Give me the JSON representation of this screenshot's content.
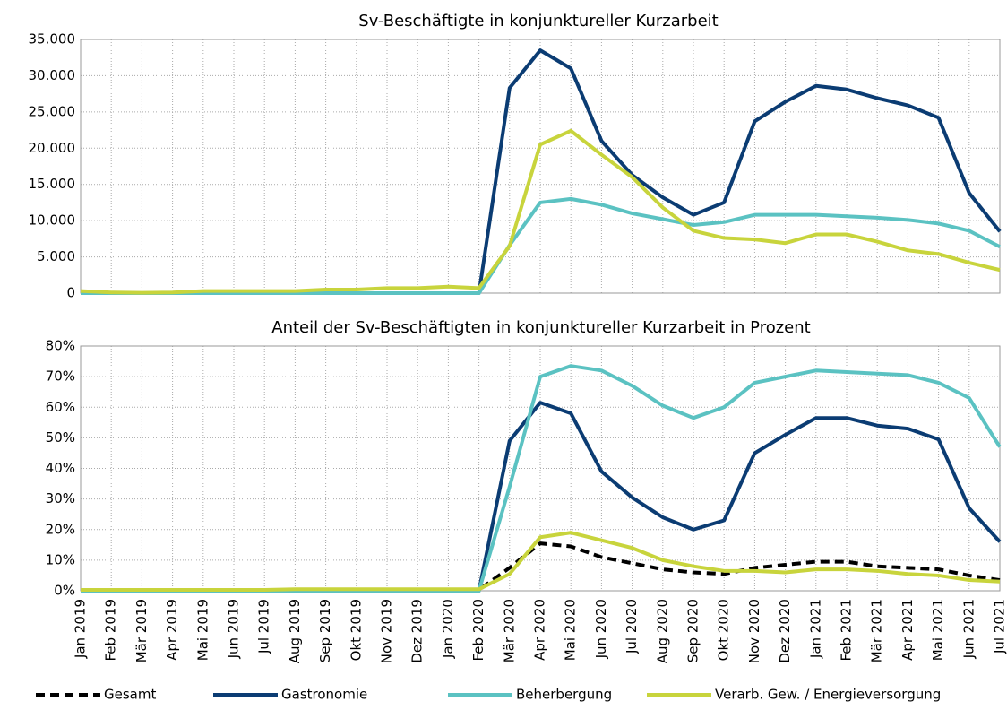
{
  "chart_data": [
    {
      "type": "line",
      "title": "Sv-Beschäftigte in konjunktureller Kurzarbeit",
      "categories": [
        "Jan 2019",
        "Feb 2019",
        "Mär 2019",
        "Apr 2019",
        "Mai 2019",
        "Jun 2019",
        "Jul 2019",
        "Aug 2019",
        "Sep 2019",
        "Okt 2019",
        "Nov 2019",
        "Dez 2019",
        "Jan 2020",
        "Feb 2020",
        "Mär 2020",
        "Apr 2020",
        "Mai 2020",
        "Jun 2020",
        "Jul 2020",
        "Aug 2020",
        "Sep 2020",
        "Okt 2020",
        "Nov 2020",
        "Dez 2020",
        "Jan 2021",
        "Feb 2021",
        "Mär 2021",
        "Apr 2021",
        "Mai 2021",
        "Jun 2021",
        "Jul 2021"
      ],
      "series": [
        {
          "name": "Gastronomie",
          "color": "#0b3c73",
          "values": [
            0,
            0,
            0,
            0,
            0,
            0,
            0,
            0,
            0,
            0,
            0,
            0,
            0,
            0,
            28300,
            33500,
            31000,
            21000,
            16300,
            13200,
            10800,
            12500,
            23700,
            26400,
            28600,
            28100,
            26900,
            25900,
            24200,
            13800,
            8500
          ]
        },
        {
          "name": "Beherbergung",
          "color": "#5bc2c2",
          "values": [
            0,
            0,
            0,
            0,
            0,
            0,
            0,
            0,
            0,
            0,
            0,
            0,
            0,
            0,
            6600,
            12500,
            13000,
            12200,
            11000,
            10200,
            9400,
            9800,
            10800,
            10800,
            10800,
            10600,
            10400,
            10100,
            9600,
            8600,
            6400
          ]
        },
        {
          "name": "Verarb. Gew. / Energieversorgung",
          "color": "#c8d43c",
          "values": [
            300,
            100,
            50,
            100,
            300,
            300,
            300,
            300,
            500,
            500,
            700,
            700,
            900,
            700,
            6500,
            20500,
            22400,
            19100,
            16000,
            11800,
            8600,
            7600,
            7400,
            6900,
            8100,
            8100,
            7100,
            5900,
            5400,
            4200,
            3200
          ]
        }
      ],
      "ylim": [
        0,
        35000
      ],
      "yticks": [
        0,
        {
          "value": 5000,
          "label": "5.000"
        },
        {
          "value": 10000,
          "label": "10.000"
        },
        {
          "value": 15000,
          "label": "15.000"
        },
        {
          "value": 20000,
          "label": "20.000"
        },
        {
          "value": 25000,
          "label": "25.000"
        },
        {
          "value": 30000,
          "label": "30.000"
        },
        {
          "value": 35000,
          "label": "35.000"
        }
      ],
      "grid": true
    },
    {
      "type": "line",
      "title": "Anteil der Sv-Beschäftigten in konjunktureller Kurzarbeit in Prozent",
      "categories": [
        "Jan 2019",
        "Feb 2019",
        "Mär 2019",
        "Apr 2019",
        "Mai 2019",
        "Jun 2019",
        "Jul 2019",
        "Aug 2019",
        "Sep 2019",
        "Okt 2019",
        "Nov 2019",
        "Dez 2019",
        "Jan 2020",
        "Feb 2020",
        "Mär 2020",
        "Apr 2020",
        "Mai 2020",
        "Jun 2020",
        "Jul 2020",
        "Aug 2020",
        "Sep 2020",
        "Okt 2020",
        "Nov 2020",
        "Dez 2020",
        "Jan 2021",
        "Feb 2021",
        "Mär 2021",
        "Apr 2021",
        "Mai 2021",
        "Jun 2021",
        "Jul 2021"
      ],
      "series": [
        {
          "name": "Gesamt",
          "color": "#000000",
          "dashed": true,
          "values": [
            0.3,
            0.3,
            0.3,
            0.3,
            0.3,
            0.3,
            0.3,
            0.3,
            0.3,
            0.3,
            0.3,
            0.3,
            0.3,
            0.3,
            7.5,
            15.5,
            14.5,
            11,
            9,
            7,
            6,
            5.5,
            7.5,
            8.5,
            9.5,
            9.5,
            8,
            7.5,
            7,
            5,
            3.5
          ]
        },
        {
          "name": "Gastronomie",
          "color": "#0b3c73",
          "values": [
            0,
            0,
            0,
            0,
            0,
            0,
            0,
            0,
            0,
            0,
            0,
            0,
            0,
            0,
            49,
            61.5,
            58,
            39,
            30.5,
            24,
            20,
            23,
            45,
            51,
            56.5,
            56.5,
            54,
            53,
            49.5,
            27,
            16
          ]
        },
        {
          "name": "Beherbergung",
          "color": "#5bc2c2",
          "values": [
            0,
            0,
            0,
            0,
            0,
            0,
            0,
            0,
            0,
            0,
            0,
            0,
            0,
            0,
            34,
            70,
            73.5,
            72,
            67,
            60.5,
            56.5,
            60,
            68,
            70,
            72,
            71.5,
            71,
            70.5,
            68,
            63,
            47
          ]
        },
        {
          "name": "Verarb. Gew. / Energieversorgung",
          "color": "#c8d43c",
          "values": [
            0.3,
            0.3,
            0.3,
            0.3,
            0.3,
            0.3,
            0.3,
            0.5,
            0.5,
            0.5,
            0.5,
            0.5,
            0.5,
            0.5,
            5.5,
            17.5,
            19,
            16.5,
            14,
            10,
            8,
            6.5,
            6.5,
            6,
            7,
            7,
            6.5,
            5.5,
            5,
            3.5,
            3
          ]
        }
      ],
      "ylim": [
        0,
        80
      ],
      "yticks": [
        {
          "value": 0,
          "label": "0%"
        },
        {
          "value": 10,
          "label": "10%"
        },
        {
          "value": 20,
          "label": "20%"
        },
        {
          "value": 30,
          "label": "30%"
        },
        {
          "value": 40,
          "label": "40%"
        },
        {
          "value": 50,
          "label": "50%"
        },
        {
          "value": 60,
          "label": "60%"
        },
        {
          "value": 70,
          "label": "70%"
        },
        {
          "value": 80,
          "label": "80%"
        }
      ],
      "grid": true
    }
  ]
}
